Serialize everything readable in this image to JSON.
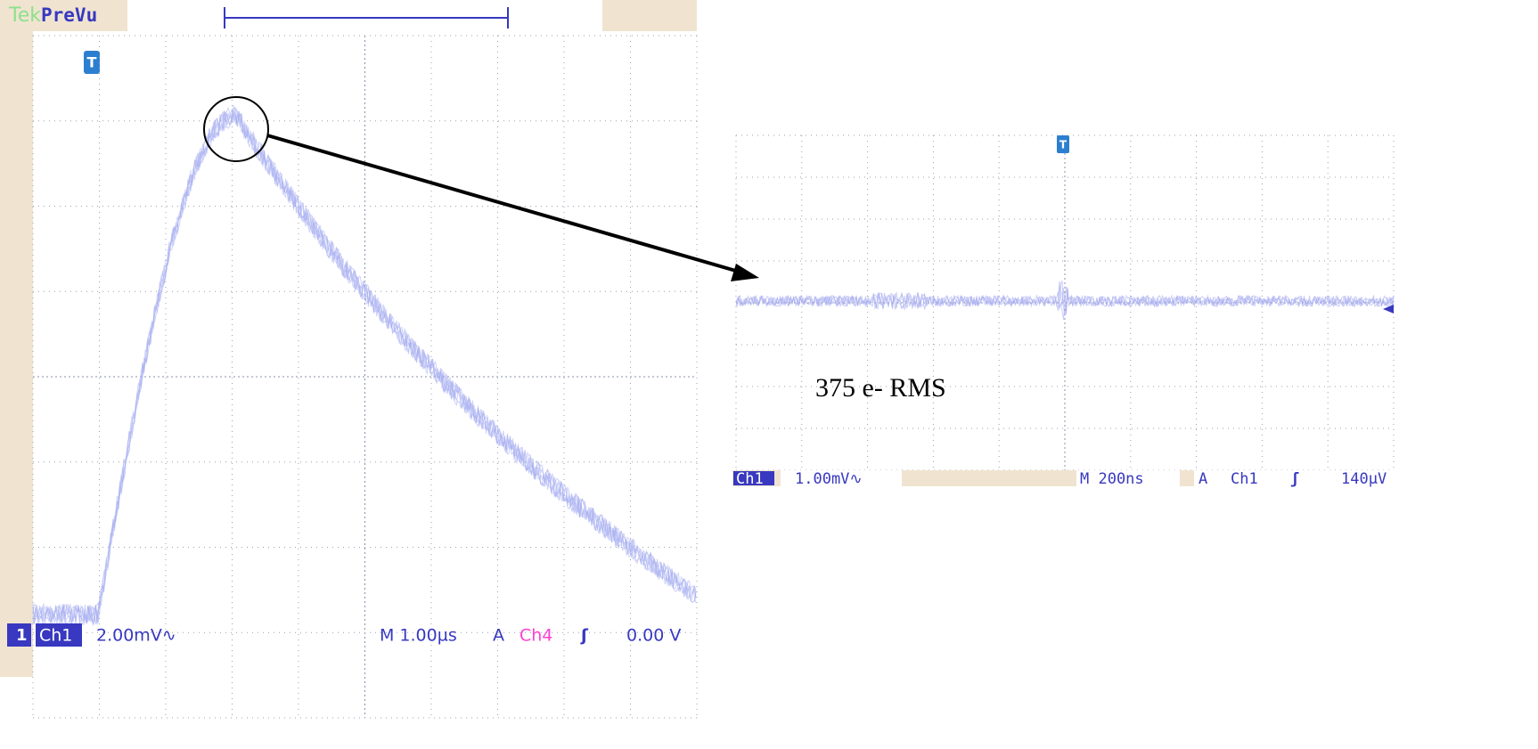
{
  "left_scope": {
    "brand": "Tek",
    "mode": "PreVu",
    "trigger_marker": "T",
    "channel_marker": "1",
    "channel": "Ch1",
    "scale": "2.00mV∿",
    "timebase": "M 1.00µs",
    "trigger_mode": "A",
    "trigger_source": "Ch4",
    "trigger_slope": "ʃ",
    "trigger_level": "0.00 V"
  },
  "right_scope": {
    "trigger_marker": "T",
    "channel": "Ch1",
    "scale": "1.00mV∿",
    "timebase": "M 200ns",
    "trigger_mode": "A",
    "trigger_source": "Ch1",
    "trigger_slope": "ʃ",
    "trigger_level": "140µV"
  },
  "annotation": "375 e- RMS"
}
